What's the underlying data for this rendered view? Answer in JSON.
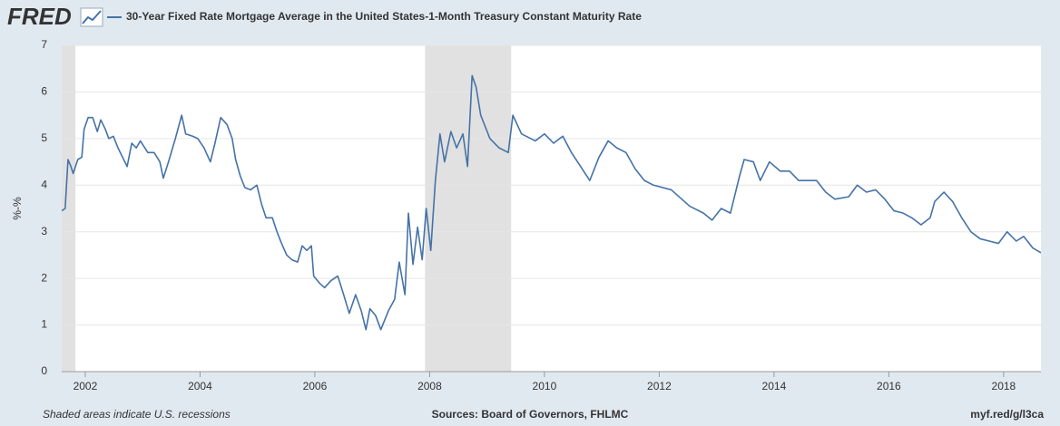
{
  "logo": "FRED",
  "chart_data": {
    "type": "line",
    "title": "30-Year Fixed Rate Mortgage Average in the United States-1-Month Treasury Constant Maturity Rate",
    "ylabel": "%-%",
    "note": "Shaded areas indicate U.S. recessions",
    "source": "Sources: Board of Governors, FHLMC",
    "link": "myf.red/g/l3ca",
    "xlim": [
      2001.59,
      2018.65
    ],
    "xticks": [
      2002,
      2004,
      2006,
      2008,
      2010,
      2012,
      2014,
      2016,
      2018
    ],
    "ylim": [
      0,
      7
    ],
    "yticks": [
      0,
      1,
      2,
      3,
      4,
      5,
      6,
      7
    ],
    "grid": true,
    "recessions": [
      [
        2001.17,
        2001.83
      ],
      [
        2007.92,
        2009.42
      ]
    ],
    "series": [
      {
        "name": "30-Year Fixed Rate Mortgage Average in the United States-1-Month Treasury Constant Maturity Rate",
        "color": "#4572a7",
        "x": [
          2001.59,
          2001.65,
          2001.7,
          2001.75,
          2001.79,
          2001.87,
          2001.94,
          2001.98,
          2002.05,
          2002.13,
          2002.21,
          2002.27,
          2002.35,
          2002.41,
          2002.49,
          2002.57,
          2002.65,
          2002.73,
          2002.81,
          2002.89,
          2002.96,
          2003.09,
          2003.2,
          2003.3,
          2003.36,
          2003.45,
          2003.57,
          2003.68,
          2003.75,
          2003.87,
          2003.96,
          2004.07,
          2004.18,
          2004.26,
          2004.36,
          2004.47,
          2004.56,
          2004.62,
          2004.7,
          2004.78,
          2004.88,
          2004.99,
          2005.07,
          2005.15,
          2005.26,
          2005.34,
          2005.42,
          2005.51,
          2005.6,
          2005.7,
          2005.78,
          2005.86,
          2005.94,
          2005.98,
          2006.08,
          2006.17,
          2006.28,
          2006.4,
          2006.49,
          2006.6,
          2006.71,
          2006.81,
          2006.89,
          2006.96,
          2007.06,
          2007.15,
          2007.28,
          2007.39,
          2007.47,
          2007.57,
          2007.63,
          2007.71,
          2007.79,
          2007.87,
          2007.94,
          2008.02,
          2008.1,
          2008.18,
          2008.26,
          2008.37,
          2008.47,
          2008.58,
          2008.66,
          2008.74,
          2008.81,
          2008.89,
          2009.05,
          2009.21,
          2009.37,
          2009.45,
          2009.6,
          2009.84,
          2010.0,
          2010.16,
          2010.32,
          2010.47,
          2010.63,
          2010.79,
          2010.95,
          2011.11,
          2011.26,
          2011.42,
          2011.58,
          2011.74,
          2011.9,
          2012.21,
          2012.53,
          2012.77,
          2012.92,
          2013.08,
          2013.24,
          2013.4,
          2013.48,
          2013.64,
          2013.76,
          2013.92,
          2014.11,
          2014.27,
          2014.43,
          2014.74,
          2014.9,
          2015.06,
          2015.3,
          2015.45,
          2015.61,
          2015.77,
          2015.93,
          2016.09,
          2016.25,
          2016.4,
          2016.56,
          2016.72,
          2016.8,
          2016.96,
          2017.11,
          2017.27,
          2017.43,
          2017.59,
          2017.75,
          2017.91,
          2018.06,
          2018.22,
          2018.35,
          2018.51,
          2018.65
        ],
        "values": [
          3.45,
          3.5,
          4.55,
          4.4,
          4.25,
          4.55,
          4.6,
          5.2,
          5.45,
          5.45,
          5.15,
          5.4,
          5.2,
          5.0,
          5.05,
          4.8,
          4.6,
          4.4,
          4.9,
          4.8,
          4.95,
          4.7,
          4.7,
          4.5,
          4.15,
          4.5,
          5.0,
          5.5,
          5.1,
          5.05,
          5.0,
          4.8,
          4.5,
          4.9,
          5.45,
          5.3,
          5.0,
          4.55,
          4.2,
          3.95,
          3.9,
          4.0,
          3.6,
          3.3,
          3.3,
          3.0,
          2.75,
          2.5,
          2.4,
          2.35,
          2.7,
          2.6,
          2.7,
          2.05,
          1.9,
          1.8,
          1.95,
          2.05,
          1.7,
          1.25,
          1.65,
          1.3,
          0.9,
          1.35,
          1.2,
          0.9,
          1.3,
          1.55,
          2.35,
          1.65,
          3.4,
          2.3,
          3.1,
          2.4,
          3.5,
          2.6,
          4.1,
          5.1,
          4.5,
          5.15,
          4.8,
          5.1,
          4.4,
          6.35,
          6.1,
          5.5,
          5.0,
          4.8,
          4.7,
          5.5,
          5.1,
          4.95,
          5.1,
          4.9,
          5.05,
          4.7,
          4.4,
          4.1,
          4.6,
          4.95,
          4.8,
          4.7,
          4.35,
          4.1,
          4.0,
          3.9,
          3.55,
          3.4,
          3.25,
          3.5,
          3.4,
          4.2,
          4.55,
          4.5,
          4.1,
          4.5,
          4.3,
          4.3,
          4.1,
          4.1,
          3.85,
          3.7,
          3.75,
          4.0,
          3.85,
          3.9,
          3.7,
          3.45,
          3.4,
          3.3,
          3.15,
          3.3,
          3.65,
          3.85,
          3.65,
          3.3,
          3.0,
          2.85,
          2.8,
          2.75,
          3.0,
          2.8,
          2.9,
          2.65,
          2.55
        ]
      }
    ]
  }
}
